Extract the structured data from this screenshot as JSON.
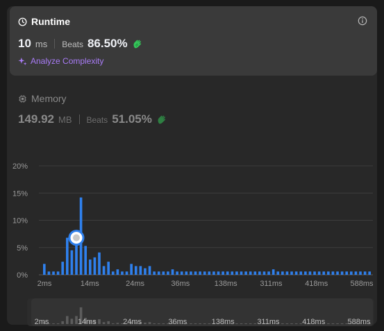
{
  "runtime": {
    "title": "Runtime",
    "value": "10",
    "unit": "ms",
    "beats_label": "Beats",
    "beats_value": "86.50%",
    "analyze_label": "Analyze Complexity"
  },
  "memory": {
    "title": "Memory",
    "value": "149.92",
    "unit": "MB",
    "beats_label": "Beats",
    "beats_value": "51.05%"
  },
  "colors": {
    "accent_bar": "#2f80ed",
    "accent_purple": "#a97cf7",
    "clap_green": "#34c759"
  },
  "chart_data": {
    "type": "bar",
    "y_ticks": [
      "20%",
      "15%",
      "10%",
      "5%",
      "0%"
    ],
    "y_tick_values": [
      20,
      15,
      10,
      5,
      0
    ],
    "ylim": [
      0,
      20
    ],
    "x_tick_labels": [
      "2ms",
      "14ms",
      "24ms",
      "36ms",
      "138ms",
      "311ms",
      "418ms",
      "588ms"
    ],
    "values": [
      2.0,
      0.6,
      0.6,
      0.6,
      2.4,
      6.8,
      4.5,
      6.8,
      14.2,
      5.3,
      2.8,
      3.2,
      4.1,
      1.6,
      2.4,
      0.6,
      1.0,
      0.6,
      0.6,
      2.0,
      1.6,
      1.6,
      1.2,
      1.6,
      0.6,
      0.6,
      0.6,
      0.6,
      1.0,
      0.6,
      0.6,
      0.6,
      0.6,
      0.6,
      0.6,
      0.6,
      0.6,
      0.6,
      0.6,
      0.6,
      0.6,
      0.6,
      0.6,
      0.6,
      0.6,
      0.6,
      0.6,
      0.6,
      0.6,
      0.6,
      1.0,
      0.6,
      0.6,
      0.6,
      0.6,
      0.6,
      0.6,
      0.6,
      0.6,
      0.6,
      0.6,
      0.6,
      0.6,
      0.6,
      0.6,
      0.6,
      0.6,
      0.6,
      0.6,
      0.6,
      0.6,
      0.6
    ],
    "highlight_index": 7,
    "grid": true
  },
  "overview": {
    "x_tick_labels": [
      "2ms",
      "14ms",
      "24ms",
      "36ms",
      "138ms",
      "311ms",
      "418ms",
      "588ms"
    ]
  }
}
